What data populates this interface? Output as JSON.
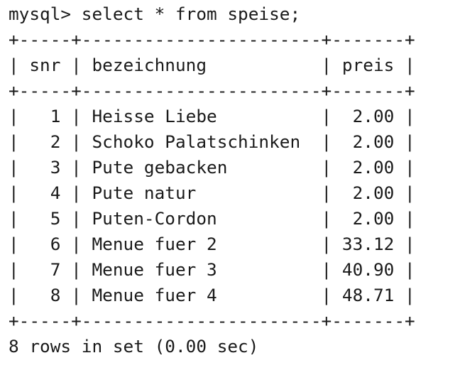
{
  "terminal": {
    "prompt": "mysql> select * from speise;",
    "border": "+-----+-----------------------+-------+",
    "header": "| snr | bezeichnung           | preis |",
    "columns": [
      "snr",
      "bezeichnung",
      "preis"
    ],
    "rows": [
      {
        "line": "|   1 | Heisse Liebe          |  2.00 |",
        "snr": "1",
        "bezeichnung": "Heisse Liebe",
        "preis": "2.00"
      },
      {
        "line": "|   2 | Schoko Palatschinken  |  2.00 |",
        "snr": "2",
        "bezeichnung": "Schoko Palatschinken",
        "preis": "2.00"
      },
      {
        "line": "|   3 | Pute gebacken         |  2.00 |",
        "snr": "3",
        "bezeichnung": "Pute gebacken",
        "preis": "2.00"
      },
      {
        "line": "|   4 | Pute natur            |  2.00 |",
        "snr": "4",
        "bezeichnung": "Pute natur",
        "preis": "2.00"
      },
      {
        "line": "|   5 | Puten-Cordon          |  2.00 |",
        "snr": "5",
        "bezeichnung": "Puten-Cordon",
        "preis": "2.00"
      },
      {
        "line": "|   6 | Menue fuer 2          | 33.12 |",
        "snr": "6",
        "bezeichnung": "Menue fuer 2",
        "preis": "33.12"
      },
      {
        "line": "|   7 | Menue fuer 3          | 40.90 |",
        "snr": "7",
        "bezeichnung": "Menue fuer 3",
        "preis": "40.90"
      },
      {
        "line": "|   8 | Menue fuer 4          | 48.71 |",
        "snr": "8",
        "bezeichnung": "Menue fuer 4",
        "preis": "48.71"
      }
    ],
    "footer": "8 rows in set (0.00 sec)"
  }
}
